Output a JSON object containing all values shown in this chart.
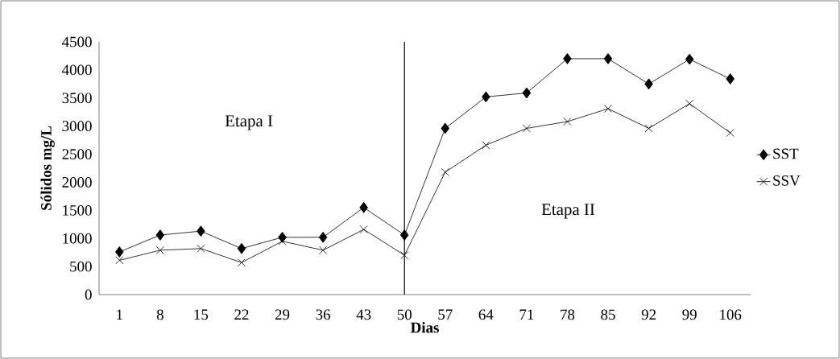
{
  "chart_data": {
    "type": "line",
    "xlabel": "Dias",
    "ylabel": "Sólidos mg/L",
    "categories": [
      "1",
      "8",
      "15",
      "22",
      "29",
      "36",
      "43",
      "50",
      "57",
      "64",
      "71",
      "78",
      "85",
      "92",
      "99",
      "106"
    ],
    "series": [
      {
        "name": "SST",
        "color": "#000000",
        "marker": "diamond",
        "values": [
          760,
          1060,
          1130,
          820,
          1020,
          1020,
          1550,
          1060,
          2960,
          3520,
          3590,
          4200,
          4200,
          3750,
          4190,
          3840
        ]
      },
      {
        "name": "SSV",
        "color": "#000000",
        "marker": "cross",
        "values": [
          610,
          790,
          820,
          570,
          950,
          790,
          1160,
          700,
          2180,
          2660,
          2960,
          3080,
          3310,
          2960,
          3400,
          2880
        ]
      }
    ],
    "ylim": [
      0,
      4500
    ],
    "yticks": [
      0,
      500,
      1000,
      1500,
      2000,
      2500,
      3000,
      3500,
      4000,
      4500
    ],
    "ref_lines": [
      {
        "axis": "x",
        "value": "50",
        "color": "#000000"
      }
    ],
    "annotations": [
      "Etapa I",
      "Etapa II"
    ],
    "legend": "right",
    "grid": false,
    "line_style": "solid"
  }
}
